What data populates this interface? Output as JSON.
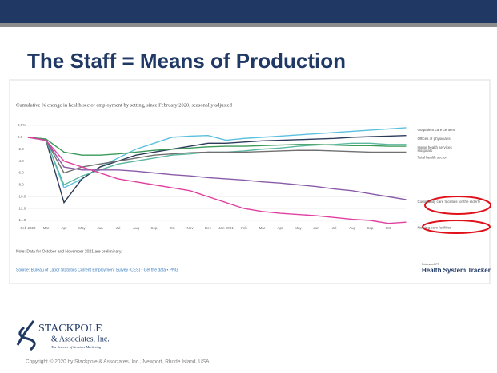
{
  "slide_title": "The Staff = Means of Production",
  "chart_data": {
    "type": "line",
    "title": "Cumulative % change in health sector employment by setting, since February 2020, seasonally adjusted",
    "categories": [
      "Feb 2020",
      "Mar",
      "Apr",
      "May",
      "Jun",
      "Jul",
      "Aug",
      "Sep",
      "Oct",
      "Nov",
      "Dec",
      "Jan 2021",
      "Feb",
      "Mar",
      "Apr",
      "May",
      "Jun",
      "Jul",
      "Aug",
      "Sep",
      "Oct",
      null
    ],
    "ylim": [
      -14,
      2
    ],
    "yticks": [
      {
        "value": 2,
        "label": "2.0%"
      },
      {
        "value": 0,
        "label": "0.0"
      },
      {
        "value": -2,
        "label": "-2.0"
      },
      {
        "value": -4,
        "label": "-4.0"
      },
      {
        "value": -6,
        "label": "-6.0"
      },
      {
        "value": -8,
        "label": "-8.0"
      },
      {
        "value": -10,
        "label": "-10.0"
      },
      {
        "value": -12,
        "label": "-12.0"
      },
      {
        "value": -14,
        "label": "-14.0"
      }
    ],
    "grid": true,
    "series": [
      {
        "name": "Outpatient care centers",
        "color": "#5bc0de",
        "values": [
          0,
          -0.3,
          -8.5,
          -7,
          -5,
          -3.5,
          -2,
          -1,
          0,
          0.2,
          0.3,
          -0.5,
          -0.2,
          0,
          0.2,
          0.4,
          0.6,
          0.8,
          1,
          1.2,
          1.4,
          1.6
        ]
      },
      {
        "name": "Offices of physicians",
        "color": "#2d3a5a",
        "values": [
          0,
          -0.5,
          -11,
          -7,
          -5,
          -4,
          -3,
          -2.5,
          -2,
          -1.5,
          -1,
          -1,
          -0.8,
          -0.6,
          -0.5,
          -0.4,
          -0.3,
          -0.2,
          0,
          0.1,
          0.2,
          0.3
        ]
      },
      {
        "name": "Home health services",
        "color": "#5cb8a0",
        "values": [
          0,
          -0.5,
          -8,
          -6.5,
          -5.5,
          -4.5,
          -4,
          -3.5,
          -3,
          -2.8,
          -2.5,
          -2.5,
          -2.3,
          -2,
          -1.8,
          -1.5,
          -1.3,
          -1.2,
          -1,
          -1,
          -1.2,
          -1.2
        ]
      },
      {
        "name": "Hospitals",
        "color": "#3a9a5a",
        "values": [
          0,
          -0.3,
          -2.5,
          -3,
          -3,
          -2.8,
          -2.5,
          -2.2,
          -2,
          -1.8,
          -1.6,
          -1.5,
          -1.5,
          -1.4,
          -1.3,
          -1.2,
          -1.2,
          -1.3,
          -1.4,
          -1.4,
          -1.5,
          -1.5
        ]
      },
      {
        "name": "Total health sector",
        "color": "#707070",
        "values": [
          0,
          -0.5,
          -6,
          -5,
          -4.5,
          -4,
          -3.5,
          -3,
          -2.8,
          -2.6,
          -2.5,
          -2.5,
          -2.5,
          -2.4,
          -2.3,
          -2.2,
          -2.2,
          -2.3,
          -2.4,
          -2.5,
          -2.5,
          -2.5
        ]
      },
      {
        "name": "Community care facilities for the elderly",
        "color": "#8a5ca8",
        "values": [
          0,
          -0.5,
          -5,
          -5.5,
          -5.5,
          -5.5,
          -5.7,
          -6,
          -6.3,
          -6.5,
          -6.8,
          -7,
          -7.2,
          -7.5,
          -7.7,
          -8,
          -8.3,
          -8.7,
          -9,
          -9.5,
          -10,
          -10.5
        ]
      },
      {
        "name": "Nursing care facilities",
        "color": "#e040a0",
        "values": [
          0,
          -0.5,
          -4,
          -5,
          -6,
          -7,
          -7.5,
          -8,
          -8.5,
          -9,
          -10,
          -11,
          -12,
          -12.5,
          -12.8,
          -13,
          -13.2,
          -13.5,
          -13.8,
          -14,
          -14.5,
          -14.3
        ]
      }
    ],
    "note": "Note: Data for October and November 2021 are preliminary.",
    "source": "Source: Bureau of Labor Statistics Current Employment Survey (CES) • Get the data • PNG",
    "brand_small": "Peterson-KFF",
    "brand": "Health System Tracker"
  },
  "logo": {
    "name": "STACKPOLE",
    "sub": "& Associates, Inc.",
    "tagline": "The Science of Services Marketing"
  },
  "copyright": "Copyright © 2020 by Stackpole & Associates, Inc., Newport, Rhode Island. USA"
}
